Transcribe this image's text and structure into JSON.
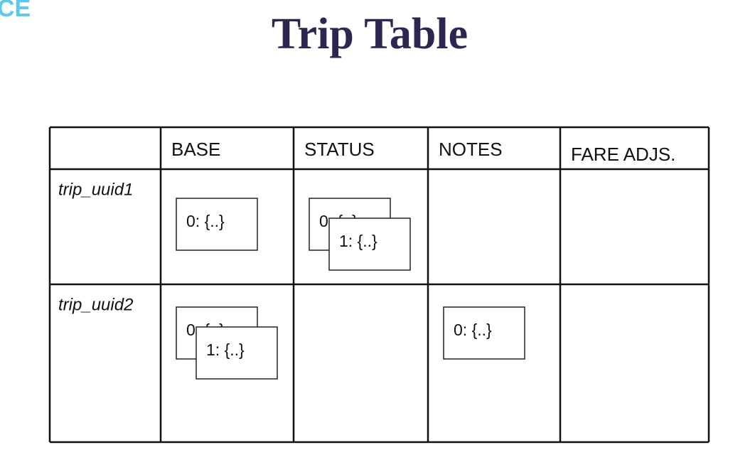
{
  "logo": "CE",
  "title": "Trip Table",
  "table": {
    "columns": [
      "BASE",
      "STATUS",
      "NOTES",
      "FARE ADJS."
    ],
    "rows": [
      {
        "key": "trip_uuid1",
        "cells": [
          [
            "0: {..}"
          ],
          [
            "0: {..}",
            "1: {..}"
          ],
          [],
          []
        ]
      },
      {
        "key": "trip_uuid2",
        "cells": [
          [
            "0: {..}",
            "1: {..}"
          ],
          [],
          [
            "0: {..}"
          ],
          []
        ]
      }
    ]
  }
}
